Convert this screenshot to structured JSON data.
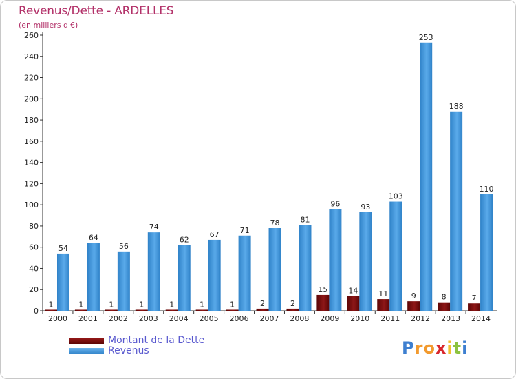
{
  "chart_data": {
    "type": "bar",
    "title": "Revenus/Dette - ARDELLES",
    "subtitle": "(en milliers d'€)",
    "categories": [
      "2000",
      "2001",
      "2002",
      "2003",
      "2004",
      "2005",
      "2006",
      "2007",
      "2008",
      "2009",
      "2010",
      "2011",
      "2012",
      "2013",
      "2014"
    ],
    "series": [
      {
        "name": "Montant de la Dette",
        "color": "#7a0c0c",
        "values": [
          1,
          1,
          1,
          1,
          1,
          1,
          1,
          2,
          2,
          15,
          14,
          11,
          9,
          8,
          7
        ]
      },
      {
        "name": "Revenus",
        "color": "#3d95dd",
        "values": [
          54,
          64,
          56,
          74,
          62,
          67,
          71,
          78,
          81,
          96,
          93,
          103,
          253,
          188,
          110
        ]
      }
    ],
    "ylim": [
      0,
      260
    ],
    "yticks": [
      0,
      20,
      40,
      60,
      80,
      100,
      120,
      140,
      160,
      180,
      200,
      220,
      240,
      260
    ],
    "grid": false,
    "legend": "bottom-left"
  },
  "logo": {
    "letters": [
      "P",
      "r",
      "o",
      "x",
      "i",
      "t",
      "i"
    ],
    "colors": [
      "#3d7fd0",
      "#f29a2e",
      "#f29a2e",
      "#d8262c",
      "#f2c12e",
      "#8dc33f",
      "#3d7fd0"
    ]
  }
}
